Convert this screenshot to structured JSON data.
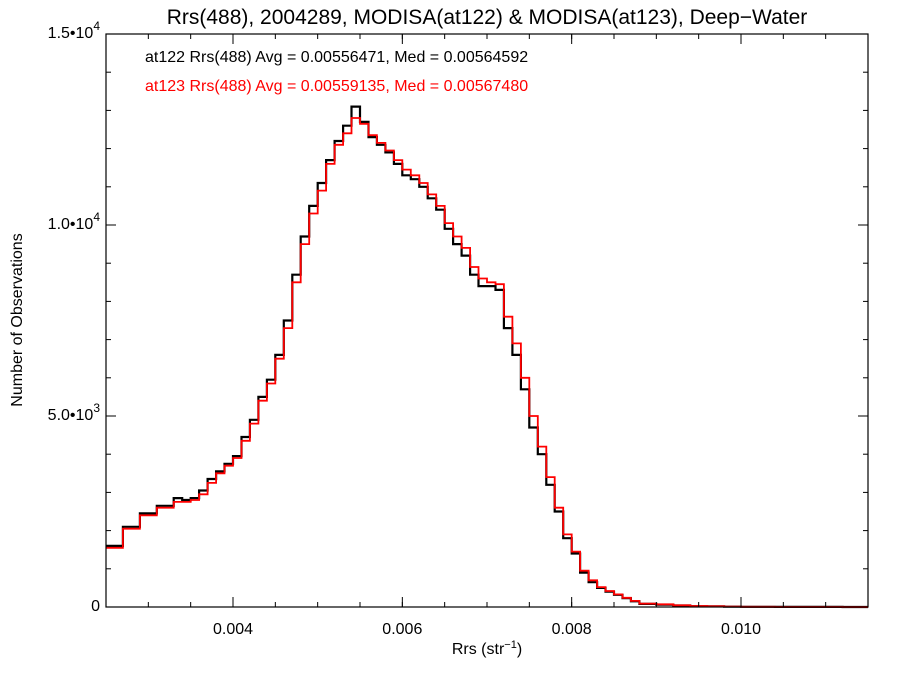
{
  "chart_data": {
    "type": "line",
    "title": "Rrs(488), 2004289, MODISA(at122) & MODISA(at123), Deep−Water",
    "xlabel": "Rrs (str",
    "xlabel_sup": "−1",
    "xlabel_end": ")",
    "ylabel": "Number of Observations",
    "xlim": [
      0.0025,
      0.0115
    ],
    "ylim": [
      0,
      15000
    ],
    "x_ticks": [
      {
        "value": 0.004,
        "label": "0.004"
      },
      {
        "value": 0.006,
        "label": "0.006"
      },
      {
        "value": 0.008,
        "label": "0.008"
      },
      {
        "value": 0.01,
        "label": "0.010"
      }
    ],
    "y_ticks": [
      {
        "value": 0,
        "mant": "0",
        "exp": ""
      },
      {
        "value": 5000,
        "mant": "5.0•10",
        "exp": "3"
      },
      {
        "value": 10000,
        "mant": "1.0•10",
        "exp": "4"
      },
      {
        "value": 15000,
        "mant": "1.5•10",
        "exp": "4"
      }
    ],
    "grid": false,
    "annotations": [
      {
        "text": "at122 Rrs(488) Avg = 0.00556471, Med = 0.00564592",
        "color": "#000000"
      },
      {
        "text": "at123 Rrs(488) Avg = 0.00559135, Med = 0.00567480",
        "color": "#ff0000"
      }
    ],
    "series": [
      {
        "color": "#000000",
        "x": [
          0.0025,
          0.0027,
          0.0029,
          0.0031,
          0.0033,
          0.0034,
          0.0035,
          0.0036,
          0.0037,
          0.0038,
          0.0039,
          0.004,
          0.0041,
          0.0042,
          0.0043,
          0.0044,
          0.0045,
          0.0046,
          0.0047,
          0.0048,
          0.0049,
          0.005,
          0.0051,
          0.0052,
          0.0053,
          0.0054,
          0.0055,
          0.0056,
          0.0057,
          0.0058,
          0.0059,
          0.006,
          0.0061,
          0.0062,
          0.0063,
          0.0064,
          0.0065,
          0.0066,
          0.0067,
          0.0068,
          0.0069,
          0.007,
          0.0071,
          0.0072,
          0.0073,
          0.0074,
          0.0075,
          0.0076,
          0.0077,
          0.0078,
          0.0079,
          0.008,
          0.0081,
          0.0082,
          0.0083,
          0.0084,
          0.0085,
          0.0086,
          0.0087,
          0.0088,
          0.009,
          0.0092,
          0.0094,
          0.0096,
          0.0098,
          0.01,
          0.0104,
          0.0108,
          0.0112,
          0.0115
        ],
        "y": [
          1600,
          2100,
          2450,
          2650,
          2850,
          2800,
          2850,
          3050,
          3350,
          3550,
          3750,
          3950,
          4450,
          4900,
          5500,
          5950,
          6600,
          7500,
          8700,
          9700,
          10500,
          11100,
          11700,
          12200,
          12600,
          13100,
          12700,
          12300,
          12100,
          11900,
          11600,
          11300,
          11200,
          11000,
          10700,
          10400,
          9900,
          9500,
          9200,
          8700,
          8400,
          8400,
          8300,
          7300,
          6600,
          5700,
          4700,
          4000,
          3200,
          2500,
          1800,
          1400,
          900,
          650,
          500,
          400,
          320,
          230,
          150,
          80,
          60,
          40,
          20,
          15,
          8,
          4,
          3,
          2,
          1,
          0
        ]
      },
      {
        "color": "#ff0000",
        "x": [
          0.0025,
          0.0027,
          0.0029,
          0.0031,
          0.0033,
          0.0034,
          0.0035,
          0.0036,
          0.0037,
          0.0038,
          0.0039,
          0.004,
          0.0041,
          0.0042,
          0.0043,
          0.0044,
          0.0045,
          0.0046,
          0.0047,
          0.0048,
          0.0049,
          0.005,
          0.0051,
          0.0052,
          0.0053,
          0.0054,
          0.0055,
          0.0056,
          0.0057,
          0.0058,
          0.0059,
          0.006,
          0.0061,
          0.0062,
          0.0063,
          0.0064,
          0.0065,
          0.0066,
          0.0067,
          0.0068,
          0.0069,
          0.007,
          0.0071,
          0.0072,
          0.0073,
          0.0074,
          0.0075,
          0.0076,
          0.0077,
          0.0078,
          0.0079,
          0.008,
          0.0081,
          0.0082,
          0.0083,
          0.0084,
          0.0085,
          0.0086,
          0.0087,
          0.0088,
          0.009,
          0.0092,
          0.0094,
          0.0096,
          0.0098,
          0.01,
          0.0104,
          0.0108,
          0.0112,
          0.0115
        ],
        "y": [
          1550,
          2050,
          2400,
          2600,
          2750,
          2750,
          2800,
          2950,
          3250,
          3500,
          3700,
          3900,
          4350,
          4800,
          5400,
          5850,
          6500,
          7300,
          8500,
          9500,
          10300,
          10900,
          11600,
          12100,
          12400,
          12800,
          12650,
          12350,
          12150,
          11950,
          11700,
          11450,
          11300,
          11100,
          10800,
          10500,
          10050,
          9700,
          9400,
          8900,
          8600,
          8500,
          8450,
          7600,
          6900,
          6000,
          5000,
          4200,
          3400,
          2600,
          1900,
          1450,
          950,
          700,
          520,
          420,
          330,
          240,
          160,
          90,
          70,
          45,
          25,
          18,
          10,
          5,
          3,
          2,
          1,
          0
        ]
      }
    ]
  }
}
